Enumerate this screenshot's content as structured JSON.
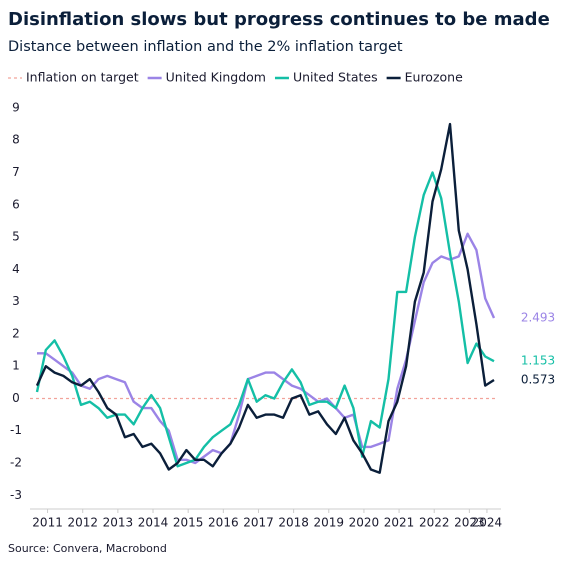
{
  "chart_data": {
    "type": "line",
    "title": "Disinflation slows but progress continues to be made",
    "subtitle": "Distance between inflation and the 2% inflation target",
    "source": "Source: Convera, Macrobond",
    "reference_line": {
      "name": "Inflation on target",
      "value": 0,
      "color": "#f2a39b",
      "dashed": true
    },
    "x": [
      2011.2,
      2011.45,
      2011.7,
      2011.95,
      2012.2,
      2012.45,
      2012.7,
      2012.95,
      2013.2,
      2013.45,
      2013.7,
      2013.95,
      2014.2,
      2014.45,
      2014.7,
      2014.95,
      2015.2,
      2015.45,
      2015.7,
      2015.95,
      2016.2,
      2016.45,
      2016.7,
      2016.95,
      2017.2,
      2017.45,
      2017.7,
      2017.95,
      2018.2,
      2018.45,
      2018.7,
      2018.95,
      2019.2,
      2019.45,
      2019.7,
      2019.95,
      2020.2,
      2020.45,
      2020.7,
      2020.95,
      2021.2,
      2021.45,
      2021.7,
      2021.95,
      2022.2,
      2022.45,
      2022.7,
      2022.95,
      2023.2,
      2023.45,
      2023.7,
      2023.95,
      2024.2
    ],
    "series": [
      {
        "name": "United Kingdom",
        "color": "#9b84e6",
        "values": [
          1.4,
          1.4,
          1.2,
          1.0,
          0.8,
          0.4,
          0.3,
          0.6,
          0.7,
          0.6,
          0.5,
          -0.1,
          -0.3,
          -0.3,
          -0.7,
          -1.0,
          -1.9,
          -1.9,
          -2.0,
          -1.8,
          -1.6,
          -1.7,
          -1.4,
          -0.5,
          0.6,
          0.7,
          0.8,
          0.8,
          0.6,
          0.4,
          0.3,
          0.1,
          -0.1,
          0.0,
          -0.3,
          -0.6,
          -0.5,
          -1.5,
          -1.5,
          -1.4,
          -1.3,
          0.3,
          1.2,
          2.4,
          3.6,
          4.2,
          4.4,
          4.3,
          4.4,
          5.1,
          4.6,
          3.1,
          2.493
        ]
      },
      {
        "name": "United States",
        "color": "#14bfa6",
        "values": [
          0.2,
          1.5,
          1.8,
          1.3,
          0.7,
          -0.2,
          -0.1,
          -0.3,
          -0.6,
          -0.5,
          -0.5,
          -0.8,
          -0.3,
          0.1,
          -0.3,
          -1.2,
          -2.1,
          -2.0,
          -1.9,
          -1.5,
          -1.2,
          -1.0,
          -0.8,
          -0.2,
          0.6,
          -0.1,
          0.1,
          0.0,
          0.5,
          0.9,
          0.5,
          -0.2,
          -0.1,
          -0.1,
          -0.3,
          0.4,
          -0.3,
          -1.8,
          -0.7,
          -0.9,
          0.6,
          3.3,
          3.3,
          5.0,
          6.3,
          7.0,
          6.2,
          4.5,
          3.0,
          1.1,
          1.7,
          1.3,
          1.153
        ]
      },
      {
        "name": "Eurozone",
        "color": "#0b1f3a",
        "values": [
          0.4,
          1.0,
          0.8,
          0.7,
          0.5,
          0.4,
          0.6,
          0.2,
          -0.3,
          -0.5,
          -1.2,
          -1.1,
          -1.5,
          -1.4,
          -1.7,
          -2.2,
          -2.0,
          -1.6,
          -1.9,
          -1.9,
          -2.1,
          -1.7,
          -1.4,
          -0.9,
          -0.2,
          -0.6,
          -0.5,
          -0.5,
          -0.6,
          0.0,
          0.1,
          -0.5,
          -0.4,
          -0.8,
          -1.1,
          -0.6,
          -1.3,
          -1.7,
          -2.2,
          -2.3,
          -0.7,
          -0.1,
          1.0,
          3.0,
          3.9,
          6.1,
          7.1,
          8.5,
          5.2,
          4.0,
          2.3,
          0.4,
          0.573
        ]
      }
    ],
    "xlim": [
      2011.0,
      2024.4
    ],
    "xticks": [
      {
        "value": 2011.5,
        "label": "2011"
      },
      {
        "value": 2012.5,
        "label": "2012"
      },
      {
        "value": 2013.5,
        "label": "2013"
      },
      {
        "value": 2014.5,
        "label": "2014"
      },
      {
        "value": 2015.5,
        "label": "2015"
      },
      {
        "value": 2016.5,
        "label": "2016"
      },
      {
        "value": 2017.5,
        "label": "2017"
      },
      {
        "value": 2018.5,
        "label": "2018"
      },
      {
        "value": 2019.5,
        "label": "2019"
      },
      {
        "value": 2020.5,
        "label": "2020"
      },
      {
        "value": 2021.5,
        "label": "2021"
      },
      {
        "value": 2022.5,
        "label": "2022"
      },
      {
        "value": 2023.5,
        "label": "2023"
      },
      {
        "value": 2024.0,
        "label": "2024"
      }
    ],
    "ylim": [
      -3.3,
      9.4
    ],
    "yticks": [
      -3,
      -2,
      -1,
      0,
      1,
      2,
      3,
      4,
      5,
      6,
      7,
      8,
      9
    ],
    "end_labels": true
  }
}
